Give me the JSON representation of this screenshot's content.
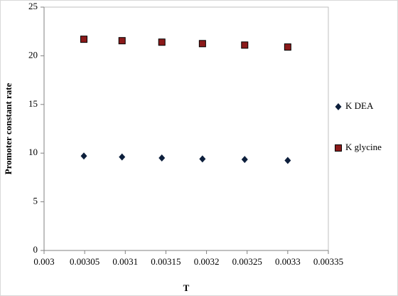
{
  "chart_data": {
    "type": "scatter",
    "x_label": "T",
    "y_label": "Promoter constant rate",
    "xlim": [
      0.003,
      0.00335
    ],
    "xticks": [
      0.003,
      0.00305,
      0.0031,
      0.00315,
      0.0032,
      0.00325,
      0.0033,
      0.00335
    ],
    "ylim": [
      0,
      25
    ],
    "yticks": [
      0,
      5,
      10,
      15,
      20,
      25
    ],
    "legend": "right",
    "series": [
      {
        "name": "K DEA",
        "color": "#0d1f3c",
        "marker": "diamond",
        "x": [
          0.003049,
          0.003096,
          0.003145,
          0.003195,
          0.003247,
          0.0033
        ],
        "values": [
          9.7,
          9.6,
          9.5,
          9.4,
          9.35,
          9.25
        ]
      },
      {
        "name": "K glycine",
        "color": "#8b1a1a",
        "marker": "square",
        "x": [
          0.003049,
          0.003096,
          0.003145,
          0.003195,
          0.003247,
          0.0033
        ],
        "values": [
          21.7,
          21.55,
          21.4,
          21.25,
          21.1,
          20.9
        ]
      }
    ]
  }
}
